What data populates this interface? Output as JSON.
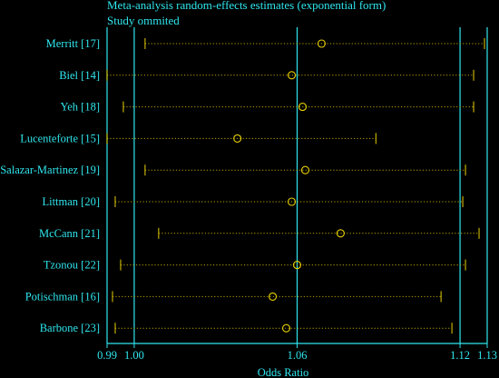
{
  "chart_data": {
    "type": "forest",
    "title": "Meta-analysis random-effects estimates (exponential form)",
    "subtitle": "Study ommited",
    "xlabel": "Odds Ratio",
    "xlim": [
      0.99,
      1.13
    ],
    "xticks": [
      "0.99",
      "1.00",
      "1.06",
      "1.12",
      "1.13"
    ],
    "xtick_values": [
      0.99,
      1.0,
      1.06,
      1.12,
      1.13
    ],
    "reference_lines": [
      1.0,
      1.06,
      1.12
    ],
    "studies": [
      {
        "label": "Merritt [17]",
        "lower": 1.004,
        "estimate": 1.069,
        "upper": 1.129
      },
      {
        "label": "Biel [14]",
        "lower": 0.99,
        "estimate": 1.058,
        "upper": 1.125
      },
      {
        "label": "Yeh [18]",
        "lower": 0.996,
        "estimate": 1.062,
        "upper": 1.125
      },
      {
        "label": "Lucenteforte [15]",
        "lower": 0.99,
        "estimate": 1.038,
        "upper": 1.089
      },
      {
        "label": "Salazar-Martinez [19]",
        "lower": 1.004,
        "estimate": 1.063,
        "upper": 1.122
      },
      {
        "label": "Littman [20]",
        "lower": 0.993,
        "estimate": 1.058,
        "upper": 1.121
      },
      {
        "label": "McCann [21]",
        "lower": 1.009,
        "estimate": 1.076,
        "upper": 1.127
      },
      {
        "label": "Tzonou [22]",
        "lower": 0.995,
        "estimate": 1.06,
        "upper": 1.122
      },
      {
        "label": "Potischman [16]",
        "lower": 0.992,
        "estimate": 1.051,
        "upper": 1.113
      },
      {
        "label": "Barbone [23]",
        "lower": 0.993,
        "estimate": 1.056,
        "upper": 1.117
      }
    ],
    "colors": {
      "background": "#000000",
      "text": "#2fe6ee",
      "axis": "#2fe6ee",
      "ci_line": "#b8a400",
      "ci_cap": "#e8d000",
      "marker": "#e8d000"
    },
    "grid": false
  }
}
